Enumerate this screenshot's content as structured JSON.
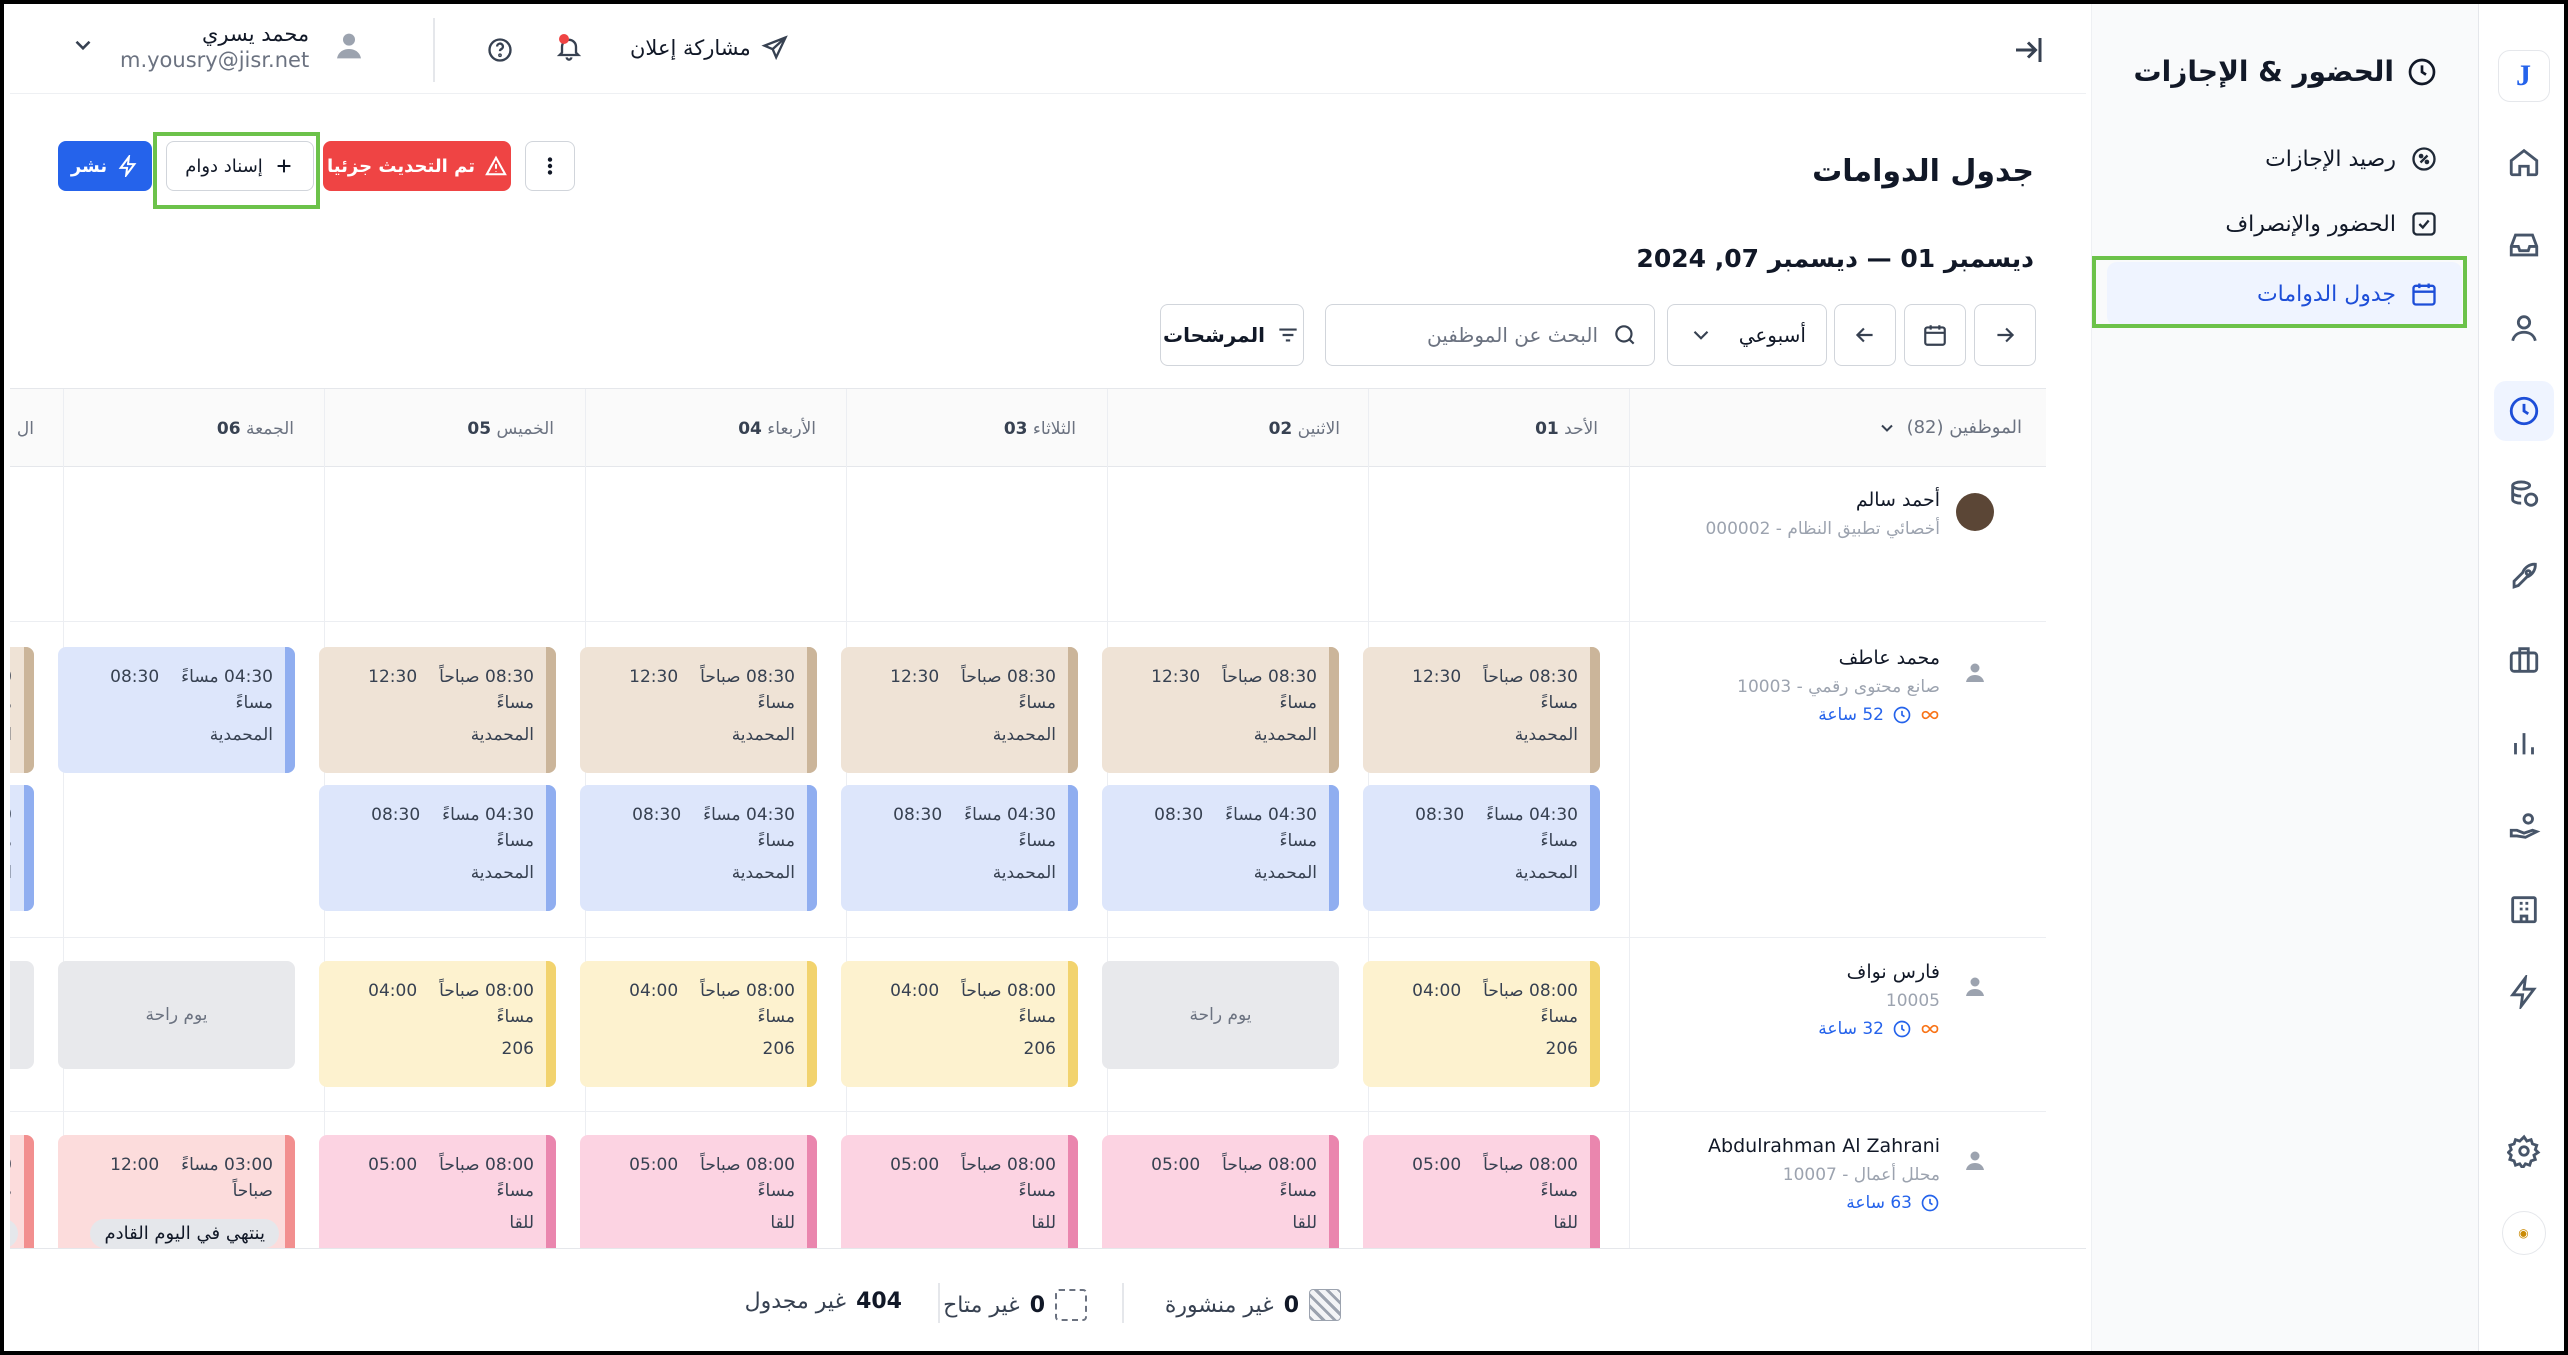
{
  "app": {
    "logo_letter": "J",
    "module_title": "الحضور & الإجازات"
  },
  "sidenav": {
    "items": [
      {
        "label": "رصيد الإجازات",
        "icon": "percent-badge-icon"
      },
      {
        "label": "الحضور والإنصراف",
        "icon": "check-square-icon"
      },
      {
        "label": "جدول الدوامات",
        "icon": "calendar-icon"
      }
    ]
  },
  "topbar": {
    "share_label": "مشاركة إعلان",
    "user_name": "محمد يسري",
    "user_email": "m.yousry@jisr.net"
  },
  "page": {
    "title": "جدول الدوامات",
    "date_range": "ديسمبر 01 — ديسمبر 07, 2024"
  },
  "actions": {
    "publish": "نشر",
    "assign": "إسناد دوام",
    "updated": "تم التحديث جزئيا"
  },
  "controls": {
    "view": "أسبوعي",
    "search_placeholder": "البحث عن الموظفين",
    "filters": "المرشحات"
  },
  "grid": {
    "employees_header": "الموظفين (82)",
    "days": [
      {
        "name": "الأحد",
        "num": "01"
      },
      {
        "name": "الاثنين",
        "num": "02"
      },
      {
        "name": "الثلاثاء",
        "num": "03"
      },
      {
        "name": "الأربعاء",
        "num": "04"
      },
      {
        "name": "الخميس",
        "num": "05"
      },
      {
        "name": "الجمعة",
        "num": "06"
      },
      {
        "name": "ال",
        "num": ""
      }
    ],
    "employees": [
      {
        "name": "أحمد سالم",
        "subtitle": "أخصائي تطبيق النظام - 000002",
        "hours": ""
      },
      {
        "name": "محمد عاطف",
        "subtitle": "صانع محتوى رقمي - 10003",
        "hours": "52 ساعة"
      },
      {
        "name": "فارس نواف",
        "subtitle": "10005",
        "hours": "32 ساعة"
      },
      {
        "name": "Abdulrahman Al Zahrani",
        "subtitle": "محلل أعمال - 10007",
        "hours": "63 ساعة"
      }
    ],
    "shift_texts": {
      "morning_start": "08:30 صباحاً",
      "morning_end": "12:30",
      "evening_start": "04:30 مساءً",
      "evening_end": "08:30",
      "masaa": "مساءً",
      "loc_hamdia": "المحمدية",
      "y_start": "08:00 صباحاً",
      "y_end": "04:00",
      "room": "206",
      "p_start": "08:00 صباحاً",
      "p_end": "05:00",
      "loc_lqa": "للقا",
      "rest_day": "يوم راحة",
      "r_start": "03:00 مساءً",
      "r_end": "12:00",
      "sabahan": "صباحاً",
      "next_day": "ينتهي في اليوم القادم"
    }
  },
  "footer": {
    "unpublished_count": "0",
    "unpublished_label": "غير منشورة",
    "unavailable_count": "0",
    "unavailable_label": "غير متاح",
    "unscheduled_count": "404",
    "unscheduled_label": "غير مجدول"
  },
  "colors": {
    "accent": "#2563eb",
    "danger": "#ef4444",
    "highlight": "#6cc24a"
  }
}
